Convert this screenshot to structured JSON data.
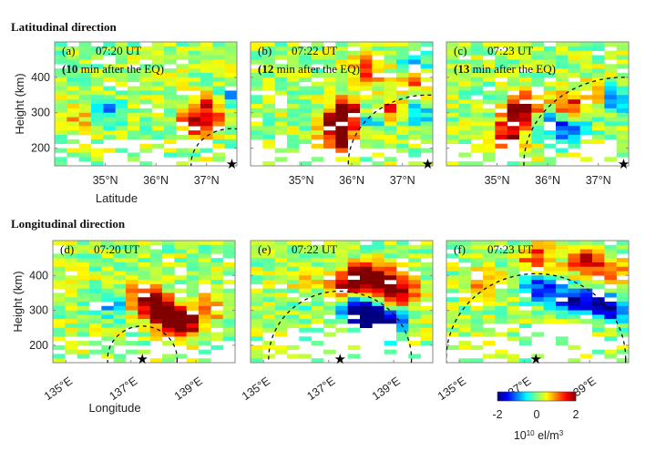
{
  "sections": {
    "top_title": "Latitudinal direction",
    "bottom_title": "Longitudinal direction"
  },
  "colorbar": {
    "colormap": "jet",
    "min": -2,
    "max": 2,
    "ticks": [
      "-2",
      "0",
      "2"
    ],
    "label_base": "10",
    "label_exp": "10",
    "label_unit": " el/m",
    "label_unit_exp": "3"
  },
  "chart_data": [
    {
      "type": "heatmap",
      "panel": "(a)",
      "time": "07:20 UT",
      "subtitle_bold": "10",
      "subtitle_rest": " min after the EQ)",
      "direction": "latitudinal",
      "xlabel": "Latitude",
      "ylabel": "Height (km)",
      "xlim": [
        34.0,
        37.6
      ],
      "ylim": [
        150,
        500
      ],
      "xticks": [
        35,
        36,
        37
      ],
      "xtick_labels": [
        "35°N",
        "36°N",
        "37°N"
      ],
      "yticks": [
        200,
        300,
        400
      ],
      "ytick_labels": [
        "200",
        "300",
        "400"
      ],
      "epicenter": {
        "x": 37.5,
        "y": 155
      },
      "wavefront_radius_km": 100,
      "anomalies": [
        {
          "x": 35.1,
          "y": 305,
          "value": -0.9
        },
        {
          "x": 34.5,
          "y": 285,
          "value": 0.6
        },
        {
          "x": 36.8,
          "y": 268,
          "value": 1.7
        },
        {
          "x": 37.1,
          "y": 315,
          "value": 1.3
        },
        {
          "x": 37.5,
          "y": 340,
          "value": -1.0
        }
      ],
      "seed": 11
    },
    {
      "type": "heatmap",
      "panel": "(b)",
      "time": "07:22 UT",
      "subtitle_bold": "12",
      "subtitle_rest": " min after the EQ)",
      "direction": "latitudinal",
      "xlabel": "",
      "ylabel": "",
      "xlim": [
        34.0,
        37.6
      ],
      "ylim": [
        150,
        500
      ],
      "xticks": [
        35,
        36,
        37
      ],
      "xtick_labels": [
        "35°N",
        "36°N",
        "37°N"
      ],
      "yticks": [
        200,
        300,
        400
      ],
      "ytick_labels": [],
      "epicenter": {
        "x": 37.5,
        "y": 155
      },
      "wavefront_radius_km": 195,
      "anomalies": [
        {
          "x": 35.75,
          "y": 265,
          "value": 2.0
        },
        {
          "x": 35.9,
          "y": 310,
          "value": 1.7
        },
        {
          "x": 35.8,
          "y": 215,
          "value": 1.4
        },
        {
          "x": 36.3,
          "y": 420,
          "value": 1.2
        },
        {
          "x": 36.8,
          "y": 305,
          "value": 1.6
        },
        {
          "x": 37.3,
          "y": 390,
          "value": 1.1
        },
        {
          "x": 37.2,
          "y": 300,
          "value": -1.3
        },
        {
          "x": 36.4,
          "y": 285,
          "value": -1.2
        },
        {
          "x": 37.3,
          "y": 430,
          "value": -1.0
        }
      ],
      "seed": 23
    },
    {
      "type": "heatmap",
      "panel": "(c)",
      "time": "07:23 UT",
      "subtitle_bold": "13",
      "subtitle_rest": " min after the EQ)",
      "direction": "latitudinal",
      "xlabel": "",
      "ylabel": "",
      "xlim": [
        34.0,
        37.6
      ],
      "ylim": [
        150,
        500
      ],
      "xticks": [
        35,
        36,
        37
      ],
      "xtick_labels": [
        "35°N",
        "36°N",
        "37°N"
      ],
      "yticks": [
        200,
        300,
        400
      ],
      "ytick_labels": [],
      "epicenter": {
        "x": 37.5,
        "y": 155
      },
      "wavefront_radius_km": 245,
      "anomalies": [
        {
          "x": 35.2,
          "y": 230,
          "value": 1.9
        },
        {
          "x": 35.4,
          "y": 290,
          "value": 1.5
        },
        {
          "x": 35.6,
          "y": 330,
          "value": 1.3
        },
        {
          "x": 36.4,
          "y": 310,
          "value": 1.6
        },
        {
          "x": 36.95,
          "y": 350,
          "value": 1.0
        },
        {
          "x": 36.45,
          "y": 255,
          "value": -1.5
        },
        {
          "x": 37.3,
          "y": 340,
          "value": -1.3
        },
        {
          "x": 36.1,
          "y": 280,
          "value": -1.0
        }
      ],
      "seed": 37
    },
    {
      "type": "heatmap",
      "panel": "(d)",
      "time": "07:20 UT",
      "direction": "longitudinal",
      "xlabel": "Longitude",
      "ylabel": "Height (km)",
      "xlim": [
        134.6,
        140.2
      ],
      "ylim": [
        150,
        500
      ],
      "xticks": [
        135,
        137,
        139
      ],
      "xtick_labels": [
        "135°E",
        "137°E",
        "139°E"
      ],
      "yticks": [
        200,
        300,
        400
      ],
      "ytick_labels": [
        "200",
        "300",
        "400"
      ],
      "epicenter": {
        "x": 137.35,
        "y": 160
      },
      "wavefront_radius_km": 95,
      "anomalies": [
        {
          "x": 137.45,
          "y": 335,
          "value": 1.8
        },
        {
          "x": 137.9,
          "y": 305,
          "value": 1.6
        },
        {
          "x": 138.35,
          "y": 275,
          "value": 2.0
        },
        {
          "x": 138.6,
          "y": 255,
          "value": 1.7
        },
        {
          "x": 136.4,
          "y": 320,
          "value": -0.9
        },
        {
          "x": 139.5,
          "y": 310,
          "value": 0.8
        }
      ],
      "seed": 41
    },
    {
      "type": "heatmap",
      "panel": "(e)",
      "time": "07:22 UT",
      "direction": "longitudinal",
      "xlabel": "",
      "ylabel": "",
      "xlim": [
        134.6,
        140.2
      ],
      "ylim": [
        150,
        500
      ],
      "xticks": [
        135,
        137,
        139
      ],
      "xtick_labels": [
        "135°E",
        "137°E",
        "139°E"
      ],
      "yticks": [
        200,
        300,
        400
      ],
      "ytick_labels": [],
      "epicenter": {
        "x": 137.35,
        "y": 160
      },
      "wavefront_radius_km": 195,
      "anomalies": [
        {
          "x": 138.3,
          "y": 280,
          "value": -2.0
        },
        {
          "x": 137.9,
          "y": 300,
          "value": -1.8
        },
        {
          "x": 138.9,
          "y": 260,
          "value": -1.7
        },
        {
          "x": 136.3,
          "y": 350,
          "value": -0.9
        },
        {
          "x": 138.2,
          "y": 400,
          "value": 1.8
        },
        {
          "x": 138.7,
          "y": 375,
          "value": 2.0
        },
        {
          "x": 137.6,
          "y": 380,
          "value": 1.7
        },
        {
          "x": 139.3,
          "y": 350,
          "value": 1.6
        },
        {
          "x": 136.3,
          "y": 365,
          "value": 1.0
        }
      ],
      "seed": 53
    },
    {
      "type": "heatmap",
      "panel": "(f)",
      "time": "07:23 UT",
      "direction": "longitudinal",
      "xlabel": "",
      "ylabel": "",
      "xlim": [
        134.6,
        140.2
      ],
      "ylim": [
        150,
        500
      ],
      "xticks": [
        135,
        137,
        139
      ],
      "xtick_labels": [
        "135°E",
        "137°E",
        "139°E"
      ],
      "yticks": [
        200,
        300,
        400
      ],
      "ytick_labels": [],
      "epicenter": {
        "x": 137.35,
        "y": 160
      },
      "wavefront_radius_km": 245,
      "anomalies": [
        {
          "x": 137.5,
          "y": 360,
          "value": -1.7
        },
        {
          "x": 138.4,
          "y": 330,
          "value": -1.5
        },
        {
          "x": 139.2,
          "y": 320,
          "value": -2.0
        },
        {
          "x": 139.8,
          "y": 300,
          "value": -1.5
        },
        {
          "x": 138.9,
          "y": 440,
          "value": 1.7
        },
        {
          "x": 137.4,
          "y": 450,
          "value": 1.3
        },
        {
          "x": 139.7,
          "y": 400,
          "value": 1.2
        },
        {
          "x": 135.7,
          "y": 380,
          "value": 0.9
        }
      ],
      "seed": 67
    }
  ]
}
